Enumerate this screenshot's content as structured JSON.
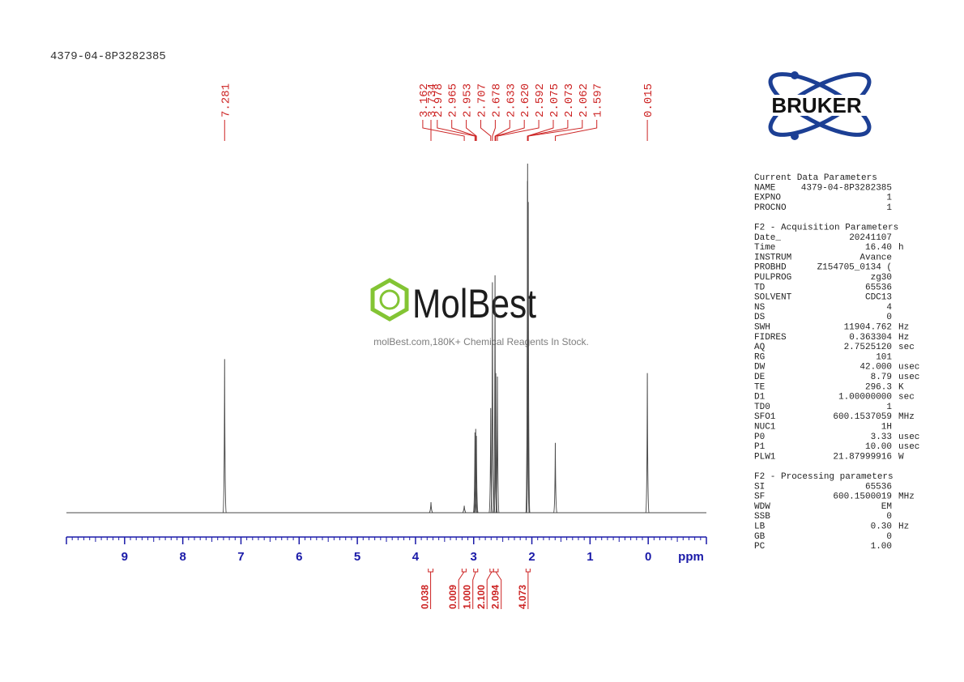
{
  "sample_id": "4379-04-8P3282385",
  "logo": "BRUKER",
  "watermark": {
    "title": "MolBest",
    "subtitle": "molBest.com,180K+ Chemical Reagents In Stock."
  },
  "chart_data": {
    "type": "nmr",
    "x_label": "ppm",
    "xlim": [
      10,
      -1
    ],
    "xticks": [
      9,
      8,
      7,
      6,
      5,
      4,
      3,
      2,
      1,
      0
    ],
    "ylim": [
      0,
      100
    ],
    "color": "#4a4a4a",
    "label_color": "#cc2222",
    "axis_color": "#1a1aa8",
    "peaks": {
      "ppm": [
        7.281,
        3.734,
        3.162,
        2.978,
        2.965,
        2.953,
        2.707,
        2.678,
        2.633,
        2.62,
        2.592,
        2.075,
        2.073,
        2.062,
        1.597,
        0.015
      ],
      "ppm_labels": [
        "7.281",
        "3.734",
        "3.162",
        "2.978",
        "2.965",
        "2.953",
        "2.707",
        "2.678",
        "2.633",
        "2.620",
        "2.592",
        "2.075",
        "2.073",
        "2.062",
        "1.597",
        "0.015"
      ],
      "intensity": [
        44,
        3,
        2,
        23,
        24,
        22,
        30,
        66,
        68,
        40,
        39,
        95,
        100,
        89,
        20,
        40
      ]
    },
    "integrals": {
      "ranges": [
        [
          3.78,
          3.7
        ],
        [
          3.2,
          3.13
        ],
        [
          3.0,
          2.93
        ],
        [
          2.72,
          2.66
        ],
        [
          2.66,
          2.58
        ],
        [
          2.1,
          2.03
        ]
      ],
      "values": [
        0.038,
        0.009,
        1.0,
        2.1,
        2.094,
        4.073
      ],
      "value_labels": [
        "0.038",
        "0.009",
        "1.000",
        "2.100",
        "2.094",
        "4.073"
      ]
    }
  },
  "parameters": [
    {
      "title": "Current Data Parameters",
      "rows": [
        [
          "NAME",
          "4379-04-8P3282385"
        ],
        [
          "EXPNO",
          "1"
        ],
        [
          "PROCNO",
          "1"
        ]
      ]
    },
    {
      "title": "F2 - Acquisition Parameters",
      "rows": [
        [
          "Date_",
          "20241107"
        ],
        [
          "Time",
          "16.40",
          "h"
        ],
        [
          "INSTRUM",
          "Avance"
        ],
        [
          "PROBHD",
          "Z154705_0134 ("
        ],
        [
          "PULPROG",
          "zg30"
        ],
        [
          "TD",
          "65536"
        ],
        [
          "SOLVENT",
          "CDC13"
        ],
        [
          "NS",
          "4"
        ],
        [
          "DS",
          "0"
        ],
        [
          "SWH",
          "11904.762",
          "Hz"
        ],
        [
          "FIDRES",
          "0.363304",
          "Hz"
        ],
        [
          "AQ",
          "2.7525120",
          "sec"
        ],
        [
          "RG",
          "101"
        ],
        [
          "DW",
          "42.000",
          "usec"
        ],
        [
          "DE",
          "8.79",
          "usec"
        ],
        [
          "TE",
          "296.3",
          "K"
        ],
        [
          "D1",
          "1.00000000",
          "sec"
        ],
        [
          "TD0",
          "1"
        ],
        [
          "SFO1",
          "600.1537059",
          "MHz"
        ],
        [
          "NUC1",
          "1H"
        ],
        [
          "P0",
          "3.33",
          "usec"
        ],
        [
          "P1",
          "10.00",
          "usec"
        ],
        [
          "PLW1",
          "21.87999916",
          "W"
        ]
      ]
    },
    {
      "title": "F2 - Processing parameters",
      "rows": [
        [
          "SI",
          "65536"
        ],
        [
          "SF",
          "600.1500019",
          "MHz"
        ],
        [
          "WDW",
          "EM"
        ],
        [
          "SSB",
          "0"
        ],
        [
          "LB",
          "0.30",
          "Hz"
        ],
        [
          "GB",
          "0"
        ],
        [
          "PC",
          "1.00"
        ]
      ]
    }
  ]
}
